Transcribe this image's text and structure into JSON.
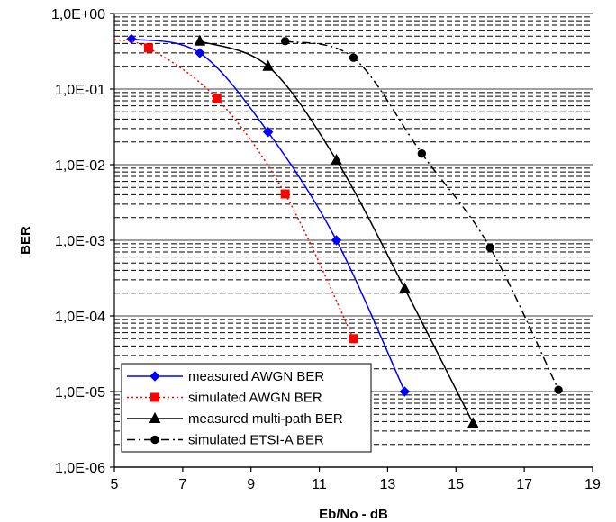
{
  "chart_data": {
    "type": "line",
    "xlabel": "Eb/No - dB",
    "ylabel": "BER",
    "xlim": [
      5,
      19
    ],
    "ylim": [
      1e-06,
      1
    ],
    "y_scale": "log",
    "x_ticks": [
      5,
      7,
      9,
      11,
      13,
      15,
      17,
      19
    ],
    "y_ticks": [
      {
        "value": 1,
        "label": "1,0E+00"
      },
      {
        "value": 0.1,
        "label": "1,0E-01"
      },
      {
        "value": 0.01,
        "label": "1,0E-02"
      },
      {
        "value": 0.001,
        "label": "1,0E-03"
      },
      {
        "value": 0.0001,
        "label": "1,0E-04"
      },
      {
        "value": 1e-05,
        "label": "1,0E-05"
      },
      {
        "value": 1e-06,
        "label": "1,0E-06"
      }
    ],
    "grid": {
      "major": true,
      "minor": true,
      "minor_style": "dashed"
    },
    "legend_position": "bottom-left",
    "series": [
      {
        "name": "measured AWGN BER",
        "color": "#0000ff",
        "line_style": "solid",
        "marker": "diamond",
        "x": [
          5.5,
          7.5,
          9.5,
          11.5,
          13.5
        ],
        "y": [
          0.46,
          0.3,
          0.027,
          0.001,
          1e-05
        ]
      },
      {
        "name": "simulated AWGN BER",
        "color": "#ff0000",
        "line_style": "dotted",
        "marker": "square",
        "x": [
          6,
          8,
          10,
          12
        ],
        "y": [
          0.35,
          0.075,
          0.0041,
          5e-05
        ]
      },
      {
        "name": "measured multi-path BER",
        "color": "#000000",
        "line_style": "solid",
        "marker": "triangle",
        "x": [
          7.5,
          9.5,
          11.5,
          13.5,
          15.5
        ],
        "y": [
          0.43,
          0.2,
          0.0115,
          0.00023,
          3.8e-06
        ]
      },
      {
        "name": "simulated ETSI-A BER",
        "color": "#000000",
        "line_style": "dash-dot",
        "marker": "circle",
        "x": [
          10,
          12,
          14,
          16,
          18
        ],
        "y": [
          0.43,
          0.26,
          0.014,
          0.0008,
          1.05e-05
        ]
      }
    ]
  }
}
